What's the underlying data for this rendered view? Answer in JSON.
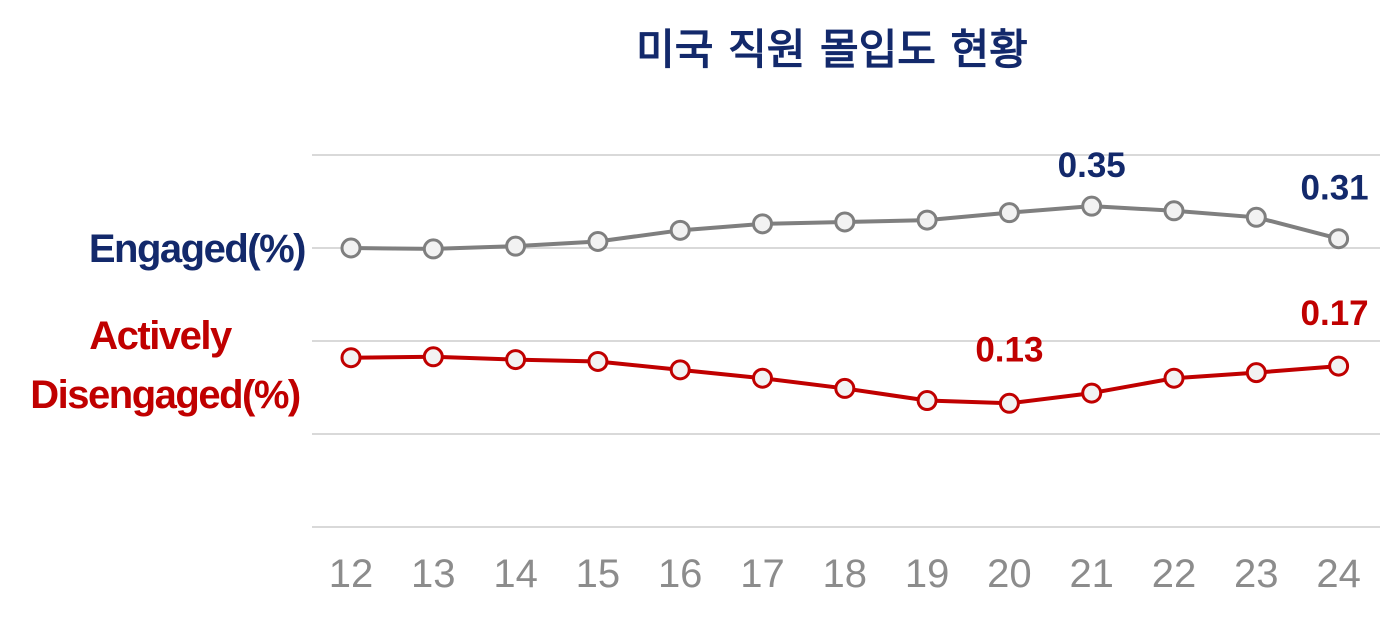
{
  "colors": {
    "engaged_label": "#13296b",
    "engaged_line": "#7f7f7f",
    "disengaged": "#c00000",
    "marker_fill": "#f2f2f2",
    "tick": "#8c8c8c",
    "grid": "#d9d9d9"
  },
  "chart_data": {
    "type": "line",
    "title": "미국 직원 몰입도 현황",
    "x": [
      "12",
      "13",
      "14",
      "15",
      "16",
      "17",
      "18",
      "19",
      "20",
      "21",
      "22",
      "23",
      "24"
    ],
    "ylim": [
      0,
      0.4
    ],
    "grid": true,
    "legend": "left",
    "series": [
      {
        "name": "Engaged(%)",
        "values": [
          0.3,
          0.299,
          0.302,
          0.307,
          0.319,
          0.326,
          0.328,
          0.33,
          0.338,
          0.345,
          0.34,
          0.333,
          0.31
        ]
      },
      {
        "name": "Actively Disengaged(%)",
        "values": [
          0.182,
          0.183,
          0.18,
          0.178,
          0.169,
          0.16,
          0.149,
          0.136,
          0.133,
          0.144,
          0.16,
          0.166,
          0.173
        ]
      }
    ],
    "data_labels": [
      {
        "series": 0,
        "index": 9,
        "text": "0.35"
      },
      {
        "series": 0,
        "index": 12,
        "text": "0.31"
      },
      {
        "series": 1,
        "index": 8,
        "text": "0.13"
      },
      {
        "series": 1,
        "index": 12,
        "text": "0.17"
      }
    ]
  },
  "labels": {
    "engaged": "Engaged(%)",
    "disengaged_line1": "Actively",
    "disengaged_line2": "Disengaged(%)"
  }
}
